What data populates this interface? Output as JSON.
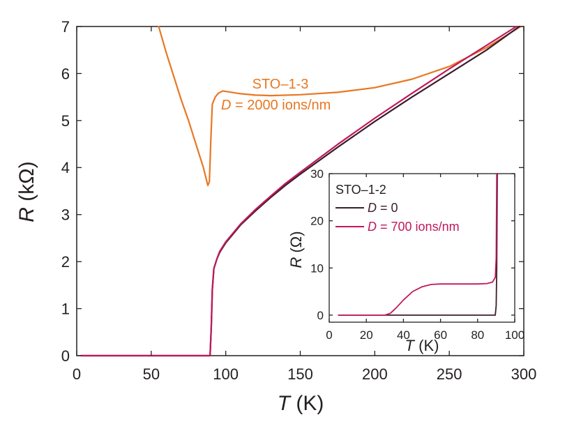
{
  "chart_data": [
    {
      "type": "line",
      "xlabel": {
        "var": "T",
        "unit": " (K)"
      },
      "ylabel": {
        "var": "R",
        "unit": " (kΩ)"
      },
      "xlim": [
        0,
        300
      ],
      "ylim": [
        0,
        7
      ],
      "xticks": [
        0,
        50,
        100,
        150,
        200,
        250,
        300
      ],
      "yticks": [
        0,
        1,
        2,
        3,
        4,
        5,
        6,
        7
      ],
      "grid": false,
      "series": [
        {
          "id": "orange",
          "color": "#e87722",
          "points": [
            [
              55,
              7.0
            ],
            [
              60,
              6.45
            ],
            [
              65,
              5.95
            ],
            [
              70,
              5.45
            ],
            [
              75,
              5.0
            ],
            [
              80,
              4.5
            ],
            [
              85,
              4.0
            ],
            [
              88,
              3.62
            ],
            [
              89,
              3.7
            ],
            [
              90,
              4.6
            ],
            [
              91,
              5.35
            ],
            [
              93,
              5.5
            ],
            [
              95,
              5.58
            ],
            [
              98,
              5.63
            ],
            [
              100,
              5.62
            ],
            [
              110,
              5.57
            ],
            [
              120,
              5.54
            ],
            [
              130,
              5.53
            ],
            [
              150,
              5.55
            ],
            [
              175,
              5.6
            ],
            [
              200,
              5.7
            ],
            [
              225,
              5.88
            ],
            [
              250,
              6.15
            ],
            [
              275,
              6.55
            ],
            [
              298,
              7.0
            ]
          ]
        },
        {
          "id": "dark",
          "color": "#3b1d2d",
          "points": [
            [
              3,
              0.0
            ],
            [
              50,
              0.0
            ],
            [
              89.5,
              0.0
            ],
            [
              90.3,
              0.6
            ],
            [
              91,
              1.4
            ],
            [
              92,
              1.85
            ],
            [
              94,
              2.05
            ],
            [
              96,
              2.2
            ],
            [
              100,
              2.4
            ],
            [
              110,
              2.78
            ],
            [
              120,
              3.08
            ],
            [
              130,
              3.36
            ],
            [
              140,
              3.62
            ],
            [
              150,
              3.86
            ],
            [
              175,
              4.43
            ],
            [
              200,
              4.98
            ],
            [
              225,
              5.5
            ],
            [
              250,
              6.0
            ],
            [
              275,
              6.5
            ],
            [
              297,
              7.0
            ]
          ]
        },
        {
          "id": "pink",
          "color": "#c0185a",
          "points": [
            [
              3,
              0.0
            ],
            [
              50,
              0.0
            ],
            [
              89.5,
              0.0
            ],
            [
              90.3,
              0.6
            ],
            [
              91,
              1.4
            ],
            [
              92,
              1.85
            ],
            [
              94,
              2.05
            ],
            [
              96,
              2.22
            ],
            [
              100,
              2.42
            ],
            [
              110,
              2.8
            ],
            [
              120,
              3.11
            ],
            [
              130,
              3.39
            ],
            [
              140,
              3.66
            ],
            [
              150,
              3.9
            ],
            [
              175,
              4.49
            ],
            [
              200,
              5.05
            ],
            [
              225,
              5.58
            ],
            [
              250,
              6.1
            ],
            [
              275,
              6.6
            ],
            [
              295,
              7.0
            ]
          ]
        }
      ],
      "annotations": [
        {
          "text": "STO–1-3",
          "color": "#e87722"
        },
        {
          "var": "D",
          "rest": " = 2000 ions/nm",
          "color": "#e87722"
        }
      ]
    },
    {
      "type": "line",
      "inset": true,
      "xlabel": {
        "var": "T",
        "unit": " (K)"
      },
      "ylabel": {
        "var": "R",
        "unit": " (Ω)"
      },
      "xlim": [
        0,
        100
      ],
      "ylim": [
        -1.5,
        30
      ],
      "xticks": [
        0,
        20,
        40,
        60,
        80,
        100
      ],
      "yticks": [
        0,
        10,
        20,
        30
      ],
      "grid": false,
      "legend_title": "STO–1-2",
      "series": [
        {
          "id": "dark",
          "color": "#3b1d2d",
          "legend": {
            "var": "D",
            "rest": " = 0"
          },
          "points": [
            [
              5,
              0.0
            ],
            [
              20,
              0.0
            ],
            [
              40,
              0.0
            ],
            [
              60,
              0.0
            ],
            [
              80,
              0.0
            ],
            [
              89.5,
              0.0
            ],
            [
              90,
              2
            ],
            [
              90.3,
              10
            ],
            [
              90.6,
              30
            ]
          ]
        },
        {
          "id": "pink",
          "color": "#c0185a",
          "legend": {
            "var": "D",
            "rest": " = 700 ions/nm"
          },
          "points": [
            [
              5,
              0.0
            ],
            [
              25,
              0.0
            ],
            [
              30,
              0.0
            ],
            [
              33,
              0.4
            ],
            [
              36,
              1.5
            ],
            [
              40,
              3.2
            ],
            [
              45,
              5.0
            ],
            [
              50,
              6.0
            ],
            [
              55,
              6.5
            ],
            [
              60,
              6.6
            ],
            [
              70,
              6.6
            ],
            [
              80,
              6.6
            ],
            [
              85,
              6.7
            ],
            [
              88,
              7.0
            ],
            [
              89.5,
              8.0
            ],
            [
              90,
              12
            ],
            [
              90.3,
              30
            ]
          ]
        }
      ]
    }
  ]
}
